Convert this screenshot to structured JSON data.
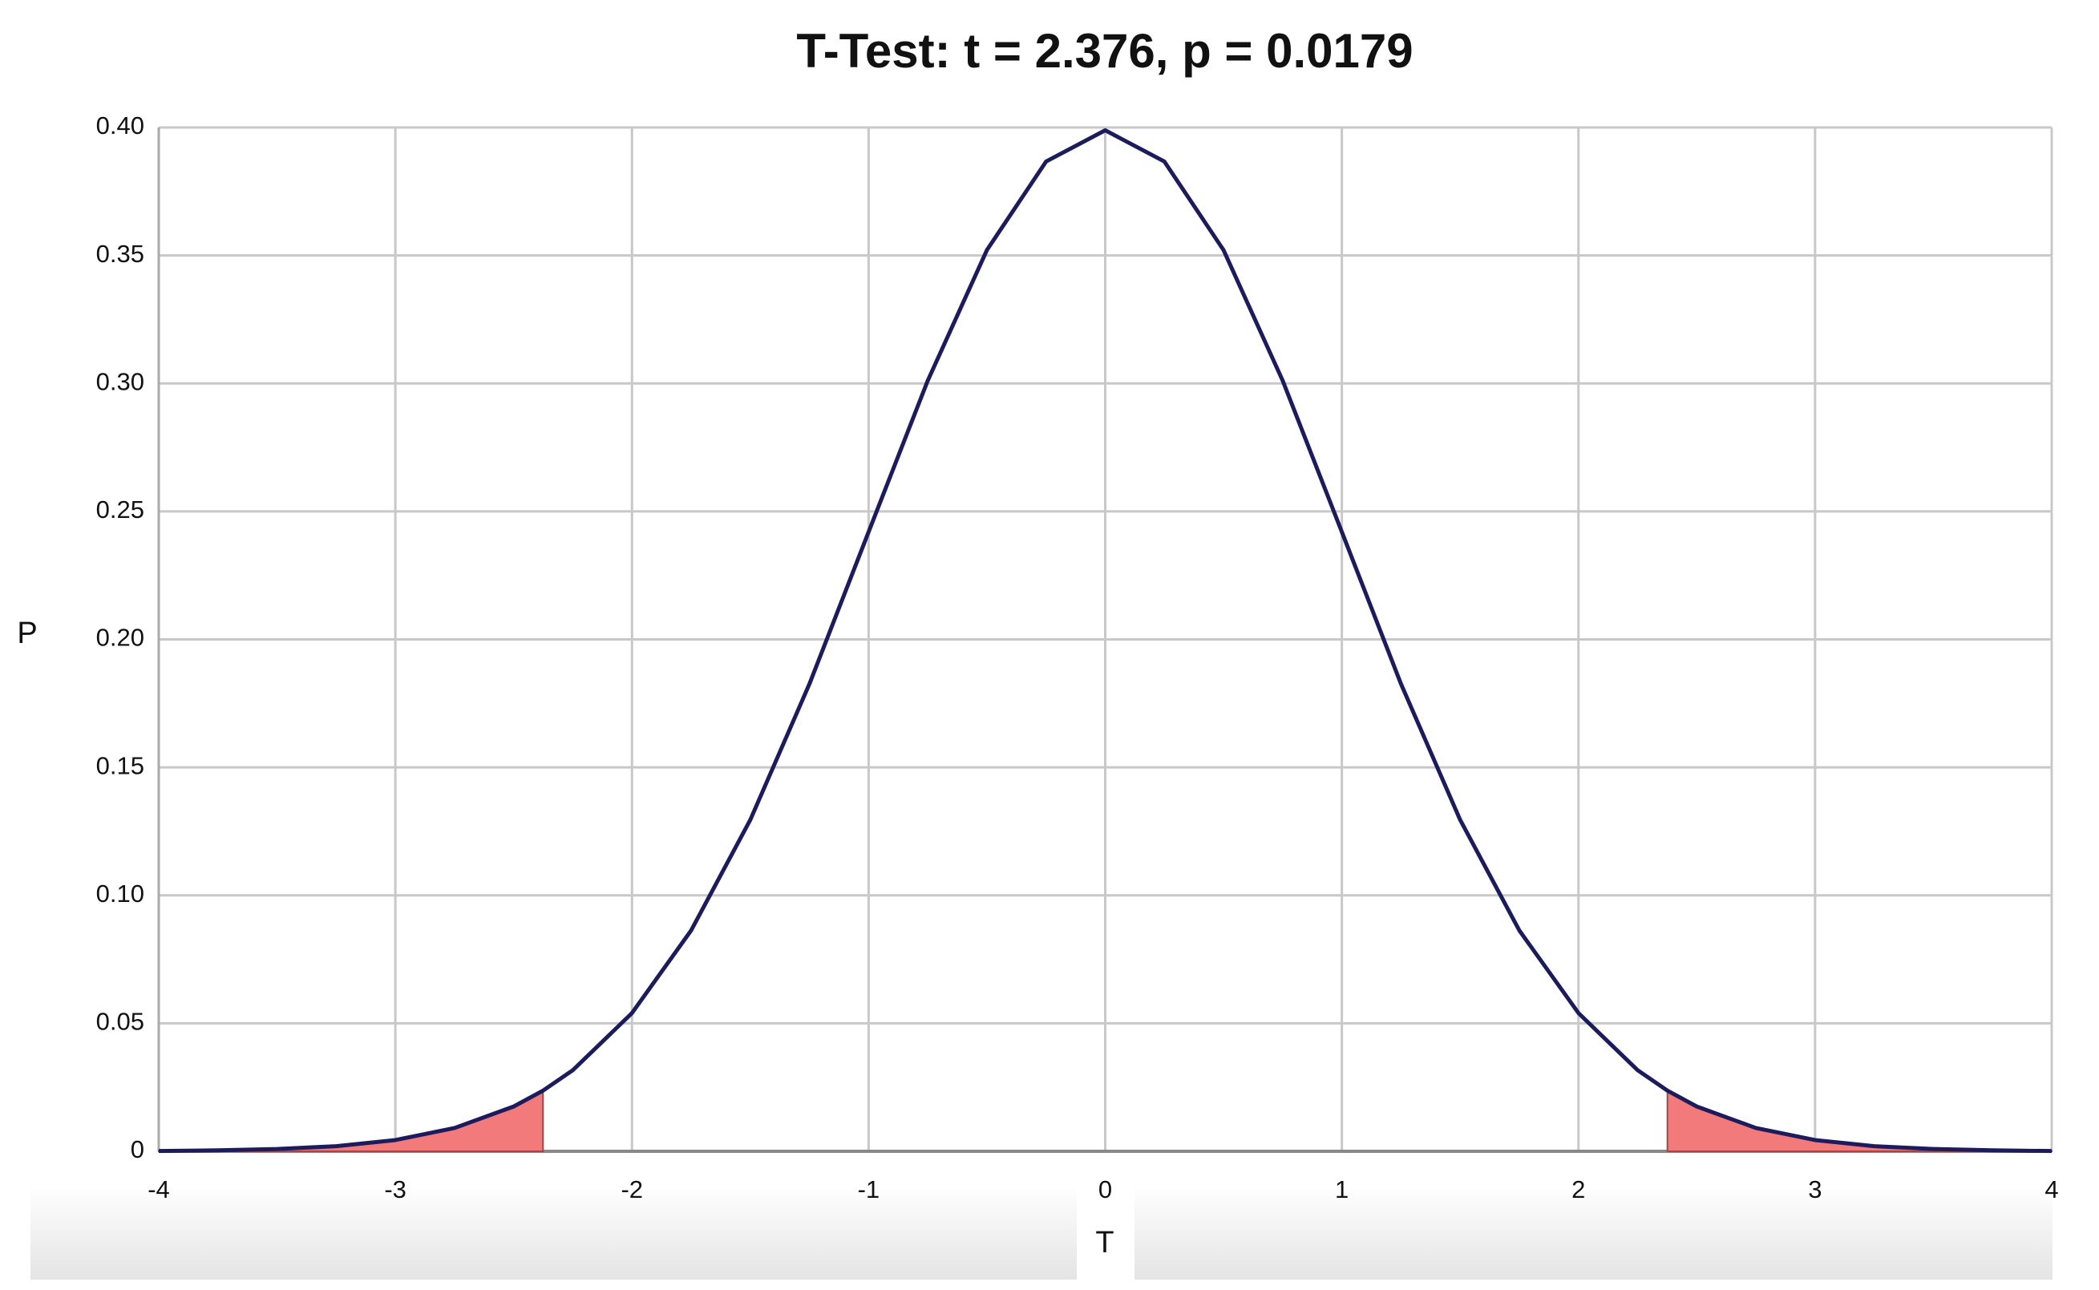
{
  "chart_data": {
    "type": "line",
    "title": "T-Test: t = 2.376, p = 0.0179",
    "x_label": "T",
    "y_label": "P",
    "x": [
      -4,
      -3.75,
      -3.5,
      -3.25,
      -3,
      -2.75,
      -2.5,
      -2.376,
      -2.25,
      -2,
      -1.75,
      -1.5,
      -1.25,
      -1,
      -0.75,
      -0.5,
      -0.25,
      0,
      0.25,
      0.5,
      0.75,
      1,
      1.25,
      1.5,
      1.75,
      2,
      2.25,
      2.376,
      2.5,
      2.75,
      3,
      3.25,
      3.5,
      3.75,
      4
    ],
    "series": [
      {
        "color": "#1c1c5c",
        "values": [
          0.0001,
          0.0004,
          0.0009,
          0.002,
          0.0044,
          0.0091,
          0.0175,
          0.0237,
          0.0317,
          0.054,
          0.0863,
          0.1295,
          0.1826,
          0.242,
          0.3011,
          0.3521,
          0.3867,
          0.3989,
          0.3867,
          0.3521,
          0.3011,
          0.242,
          0.1826,
          0.1295,
          0.0863,
          0.054,
          0.0317,
          0.0237,
          0.0175,
          0.0091,
          0.0044,
          0.002,
          0.0009,
          0.0004,
          0.0001
        ]
      },
      {
        "type": "area",
        "color": "#f27a7a",
        "values": [
          0.0001,
          0.0004,
          0.0009,
          0.002,
          0.0044,
          0.0091,
          0.0175,
          0.0237,
          null,
          null,
          null,
          null,
          null,
          null,
          null,
          null,
          null,
          null,
          null,
          null,
          null,
          null,
          null,
          null,
          null,
          null,
          null,
          0.0237,
          0.0175,
          0.0091,
          0.0044,
          0.002,
          0.0009,
          0.0004,
          0.0001
        ]
      }
    ],
    "xlim": [
      -4,
      4
    ],
    "ylim": [
      0,
      0.4
    ],
    "xticks": [
      -4,
      -3,
      -2,
      -1,
      0,
      1,
      2,
      3,
      4
    ],
    "yticks": [
      0,
      0.05,
      {
        "value": 0.1,
        "label": "0.10"
      },
      0.15,
      {
        "value": 0.2,
        "label": "0.20"
      },
      0.25,
      {
        "value": 0.3,
        "label": "0.30"
      },
      0.35,
      {
        "value": 0.4,
        "label": "0.40"
      }
    ],
    "grid": true
  }
}
